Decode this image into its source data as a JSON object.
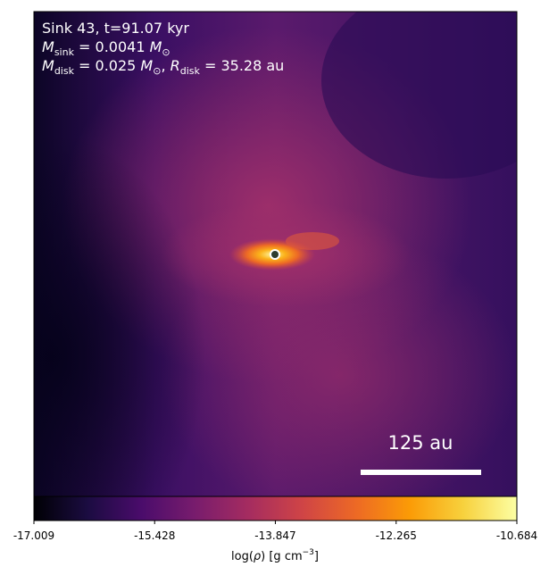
{
  "chart_data": {
    "type": "heatmap",
    "annotations": [
      [
        "Sink 43, t=91.07 kyr"
      ],
      [
        "M",
        "sink",
        " = 0.0041 ",
        "M",
        "⊙"
      ],
      [
        "M",
        "disk",
        " = 0.025 ",
        "M",
        "⊙",
        ", ",
        "R",
        "disk",
        " = 35.28 au"
      ]
    ],
    "scale_bar": "125 au",
    "colorbar": {
      "label": [
        "log(",
        "ρ",
        ") [g cm",
        "−3",
        "]"
      ],
      "clim": [
        -17.009,
        -10.684
      ],
      "ticks": [
        -17.009,
        -15.428,
        -13.847,
        -12.265,
        -10.684
      ],
      "colormap": "inferno"
    }
  }
}
